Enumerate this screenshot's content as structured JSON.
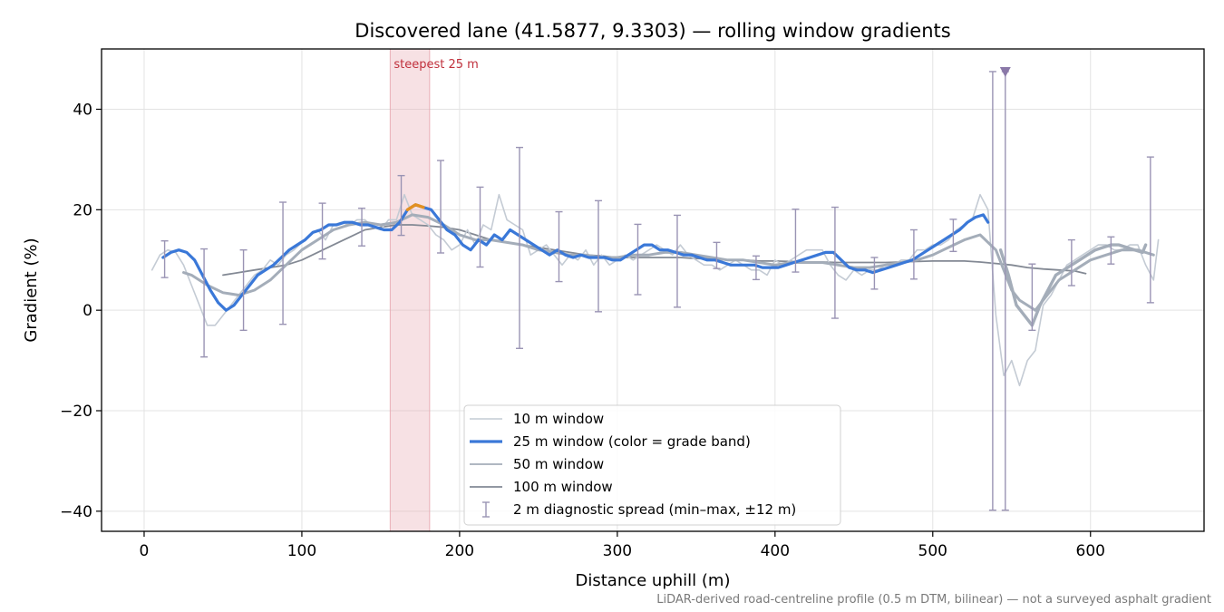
{
  "chart_data": {
    "type": "line",
    "title": "Discovered lane (41.5877, 9.3303) — rolling window gradients",
    "xlabel": "Distance uphill (m)",
    "ylabel": "Gradient (%)",
    "xlim": [
      -27,
      672
    ],
    "ylim": [
      -44,
      52
    ],
    "x_ticks": [
      0,
      100,
      200,
      300,
      400,
      500,
      600
    ],
    "x_tick_labels": [
      "0",
      "100",
      "200",
      "300",
      "400",
      "500",
      "600"
    ],
    "y_ticks": [
      -40,
      -20,
      0,
      20,
      40
    ],
    "y_tick_labels": [
      "−40",
      "−20",
      "0",
      "20",
      "40"
    ],
    "grid": true,
    "legend_position": "lower-center",
    "footnote": "LiDAR-derived road-centreline profile (0.5 m DTM, bilinear) — not a surveyed asphalt gradient",
    "highlight_span": {
      "label": "steepest 25 m",
      "x_start": 156,
      "x_end": 181,
      "color": "#e7a9b1"
    },
    "marker": {
      "x": 546,
      "y": 47.5,
      "color": "#8a78a8"
    },
    "colors": {
      "w10": "#c4cbd4",
      "w25": "#3a78d8",
      "w25_steep": "#e39020",
      "w50": "#a4adb9",
      "w100": "#838994",
      "errbar": "#9a94b4",
      "annot": "#c0303c"
    },
    "series": [
      {
        "name": "10 m window",
        "key": "w10",
        "x": [
          5,
          10,
          15,
          20,
          25,
          30,
          35,
          40,
          45,
          50,
          55,
          60,
          65,
          70,
          75,
          80,
          85,
          90,
          95,
          100,
          105,
          110,
          115,
          120,
          125,
          130,
          135,
          140,
          145,
          150,
          155,
          160,
          165,
          170,
          175,
          180,
          185,
          190,
          195,
          200,
          205,
          210,
          215,
          220,
          225,
          230,
          235,
          240,
          245,
          250,
          255,
          260,
          265,
          270,
          275,
          280,
          285,
          290,
          295,
          300,
          305,
          310,
          315,
          320,
          325,
          330,
          335,
          340,
          345,
          350,
          355,
          360,
          365,
          370,
          375,
          380,
          385,
          390,
          395,
          400,
          405,
          410,
          415,
          420,
          425,
          430,
          435,
          440,
          445,
          450,
          455,
          460,
          465,
          470,
          475,
          480,
          485,
          490,
          495,
          500,
          505,
          510,
          515,
          520,
          525,
          530,
          535,
          540,
          545,
          550,
          555,
          560,
          565,
          570,
          575,
          580,
          585,
          590,
          595,
          600,
          605,
          610,
          615,
          620,
          625,
          630,
          635,
          640,
          643
        ],
        "y": [
          8,
          11,
          12,
          11.5,
          9,
          5,
          1,
          -3,
          -3,
          -1,
          1,
          3,
          5,
          7,
          8,
          10,
          9,
          11,
          12,
          13.5,
          15,
          16,
          14,
          17,
          17.5,
          17,
          18,
          18,
          16.5,
          16,
          18,
          18,
          23,
          19,
          18,
          17,
          15,
          14,
          12,
          13,
          16,
          13,
          17,
          16,
          23,
          18,
          17,
          16,
          11,
          12,
          13,
          11,
          9,
          11,
          10,
          12,
          9,
          11,
          9,
          10,
          11,
          10,
          11,
          12,
          13,
          12,
          11,
          13,
          11,
          10,
          9,
          9,
          8,
          9,
          10,
          9,
          8,
          8,
          7,
          10,
          9,
          10,
          11,
          12,
          12,
          12,
          9,
          7,
          6,
          8,
          7,
          8,
          8,
          9,
          9,
          10,
          10,
          12,
          12,
          13,
          13,
          14,
          16,
          17,
          18,
          23,
          20,
          -1,
          -13,
          -10,
          -15,
          -10,
          -8,
          1,
          3,
          6,
          9,
          10,
          11,
          12,
          13,
          13,
          12,
          12,
          13,
          13,
          9,
          6,
          14
        ]
      },
      {
        "name": "25 m window (color = grade band)",
        "key": "w25",
        "x": [
          12,
          17,
          22,
          27,
          32,
          37,
          42,
          47,
          52,
          57,
          62,
          67,
          72,
          77,
          82,
          87,
          92,
          97,
          102,
          107,
          112,
          117,
          122,
          127,
          132,
          137,
          142,
          147,
          152,
          157,
          162,
          167,
          172,
          177,
          182,
          187,
          192,
          197,
          202,
          207,
          212,
          217,
          222,
          227,
          232,
          237,
          242,
          247,
          252,
          257,
          262,
          267,
          272,
          277,
          282,
          287,
          292,
          297,
          302,
          307,
          312,
          317,
          322,
          327,
          332,
          337,
          342,
          347,
          352,
          357,
          362,
          367,
          372,
          377,
          382,
          387,
          392,
          397,
          402,
          407,
          412,
          417,
          422,
          427,
          432,
          437,
          442,
          447,
          452,
          457,
          462,
          467,
          472,
          477,
          482,
          487,
          492,
          497,
          502,
          507,
          512,
          517,
          522,
          527,
          532,
          535
        ],
        "y": [
          10.5,
          11.5,
          12,
          11.5,
          10,
          7,
          4,
          1.5,
          0,
          1,
          3,
          5,
          7,
          8,
          9,
          10.5,
          12,
          13,
          14,
          15.5,
          16,
          17,
          17,
          17.5,
          17.5,
          17,
          17,
          16.5,
          16,
          16,
          17.5,
          20,
          21,
          20.5,
          20,
          18,
          16,
          15,
          13,
          12,
          14,
          13,
          15,
          14,
          16,
          15,
          14,
          13,
          12,
          11,
          12,
          11,
          10.5,
          11,
          10.5,
          10.5,
          10.5,
          10,
          10,
          11,
          12,
          13,
          13,
          12,
          12,
          11.5,
          11,
          11,
          10.5,
          10,
          10,
          9.5,
          9,
          9,
          9,
          9,
          8.5,
          8.5,
          8.5,
          9,
          9.5,
          10,
          10.5,
          11,
          11.5,
          11.5,
          10,
          8.5,
          8,
          8,
          7.5,
          8,
          8.5,
          9,
          9.5,
          10,
          11,
          12,
          13,
          14,
          15,
          16,
          17.5,
          18.5,
          19,
          17.5
        ],
        "x2": [
          543,
          548,
          553,
          558,
          563,
          568,
          573,
          578,
          583,
          588,
          593,
          598,
          603,
          608,
          613,
          618,
          623,
          628,
          633,
          635
        ],
        "y2": [
          12,
          7,
          1,
          -1,
          -3,
          1,
          4,
          7,
          8,
          9,
          10,
          11,
          12,
          12.5,
          13,
          13,
          12.5,
          12,
          11.5,
          13
        ]
      },
      {
        "name": "50 m window",
        "key": "w50",
        "x": [
          25,
          30,
          40,
          50,
          60,
          70,
          80,
          90,
          100,
          110,
          120,
          130,
          140,
          150,
          160,
          170,
          180,
          190,
          200,
          210,
          220,
          230,
          240,
          250,
          260,
          270,
          280,
          290,
          300,
          310,
          320,
          330,
          340,
          350,
          360,
          370,
          380,
          390,
          400,
          410,
          420,
          430,
          440,
          450,
          460,
          470,
          480,
          490,
          500,
          510,
          520,
          530,
          540,
          545,
          550,
          555,
          560,
          565,
          570,
          575,
          580,
          590,
          600,
          610,
          620,
          630,
          640
        ],
        "y": [
          7.5,
          7,
          5,
          3.5,
          3,
          4,
          6,
          9,
          12,
          14,
          16,
          17,
          17.5,
          17,
          17.5,
          19,
          18.5,
          17,
          15,
          14,
          14,
          13.5,
          13,
          12,
          11.5,
          11,
          11,
          10.5,
          10.5,
          11,
          11,
          11.5,
          11.5,
          11,
          10.5,
          10,
          10,
          9.5,
          9,
          9.5,
          9.5,
          9.5,
          9,
          8.5,
          8.5,
          9,
          9.5,
          10,
          11,
          12.5,
          14,
          15,
          12,
          8,
          4,
          2,
          1,
          0,
          2,
          4,
          6,
          8,
          10,
          11,
          12,
          12,
          11
        ]
      },
      {
        "name": "100 m window",
        "key": "w100",
        "x": [
          50,
          60,
          70,
          80,
          90,
          100,
          110,
          120,
          130,
          140,
          150,
          160,
          170,
          180,
          190,
          200,
          210,
          220,
          230,
          240,
          250,
          260,
          270,
          280,
          290,
          300,
          310,
          320,
          330,
          340,
          350,
          360,
          370,
          380,
          390,
          400,
          410,
          420,
          430,
          440,
          450,
          460,
          470,
          480,
          490,
          500,
          510,
          520,
          530,
          540,
          550,
          560,
          570,
          580,
          590,
          597
        ],
        "y": [
          7,
          7.5,
          8,
          8.5,
          9,
          10,
          11.5,
          13,
          14.5,
          16,
          16.5,
          17,
          17,
          16.8,
          16.5,
          16,
          15,
          14,
          13.5,
          13,
          12.5,
          12,
          11.5,
          11,
          10.8,
          10.5,
          10.5,
          10.5,
          10.5,
          10.5,
          10.3,
          10.2,
          10,
          10,
          9.8,
          9.8,
          9.7,
          9.6,
          9.6,
          9.5,
          9.5,
          9.5,
          9.5,
          9.6,
          9.7,
          9.8,
          9.8,
          9.8,
          9.6,
          9.3,
          9,
          8.5,
          8.2,
          8,
          7.8,
          7.3
        ]
      }
    ],
    "error_bars": {
      "name": "2 m diagnostic spread (min–max, ±12 m)",
      "points": [
        {
          "x": 13,
          "lo": 6.5,
          "hi": 13.8
        },
        {
          "x": 38,
          "lo": -9.3,
          "hi": 12.2
        },
        {
          "x": 63,
          "lo": -4,
          "hi": 12
        },
        {
          "x": 88,
          "lo": -2.8,
          "hi": 21.5
        },
        {
          "x": 113,
          "lo": 10.2,
          "hi": 21.3
        },
        {
          "x": 138,
          "lo": 12.8,
          "hi": 20.3
        },
        {
          "x": 163,
          "lo": 14.9,
          "hi": 26.8
        },
        {
          "x": 188,
          "lo": 11.4,
          "hi": 29.8
        },
        {
          "x": 213,
          "lo": 8.6,
          "hi": 24.5
        },
        {
          "x": 238,
          "lo": -7.6,
          "hi": 32.4
        },
        {
          "x": 263,
          "lo": 5.7,
          "hi": 19.6
        },
        {
          "x": 288,
          "lo": -0.3,
          "hi": 21.8
        },
        {
          "x": 313,
          "lo": 3.1,
          "hi": 17.1
        },
        {
          "x": 338,
          "lo": 0.6,
          "hi": 18.9
        },
        {
          "x": 363,
          "lo": 8.3,
          "hi": 13.5
        },
        {
          "x": 388,
          "lo": 6.1,
          "hi": 10.8
        },
        {
          "x": 413,
          "lo": 7.6,
          "hi": 20.1
        },
        {
          "x": 438,
          "lo": -1.6,
          "hi": 20.5
        },
        {
          "x": 463,
          "lo": 4.2,
          "hi": 10.5
        },
        {
          "x": 488,
          "lo": 6.2,
          "hi": 16
        },
        {
          "x": 513,
          "lo": 11.7,
          "hi": 18.1
        },
        {
          "x": 538,
          "lo": -39.8,
          "hi": 47.5
        },
        {
          "x": 546,
          "lo": -39.8,
          "hi": 47.5
        },
        {
          "x": 563,
          "lo": -4,
          "hi": 9.2
        },
        {
          "x": 588,
          "lo": 4.9,
          "hi": 14
        },
        {
          "x": 613,
          "lo": 9.2,
          "hi": 14.6
        },
        {
          "x": 638,
          "lo": 1.5,
          "hi": 30.5
        }
      ]
    }
  }
}
